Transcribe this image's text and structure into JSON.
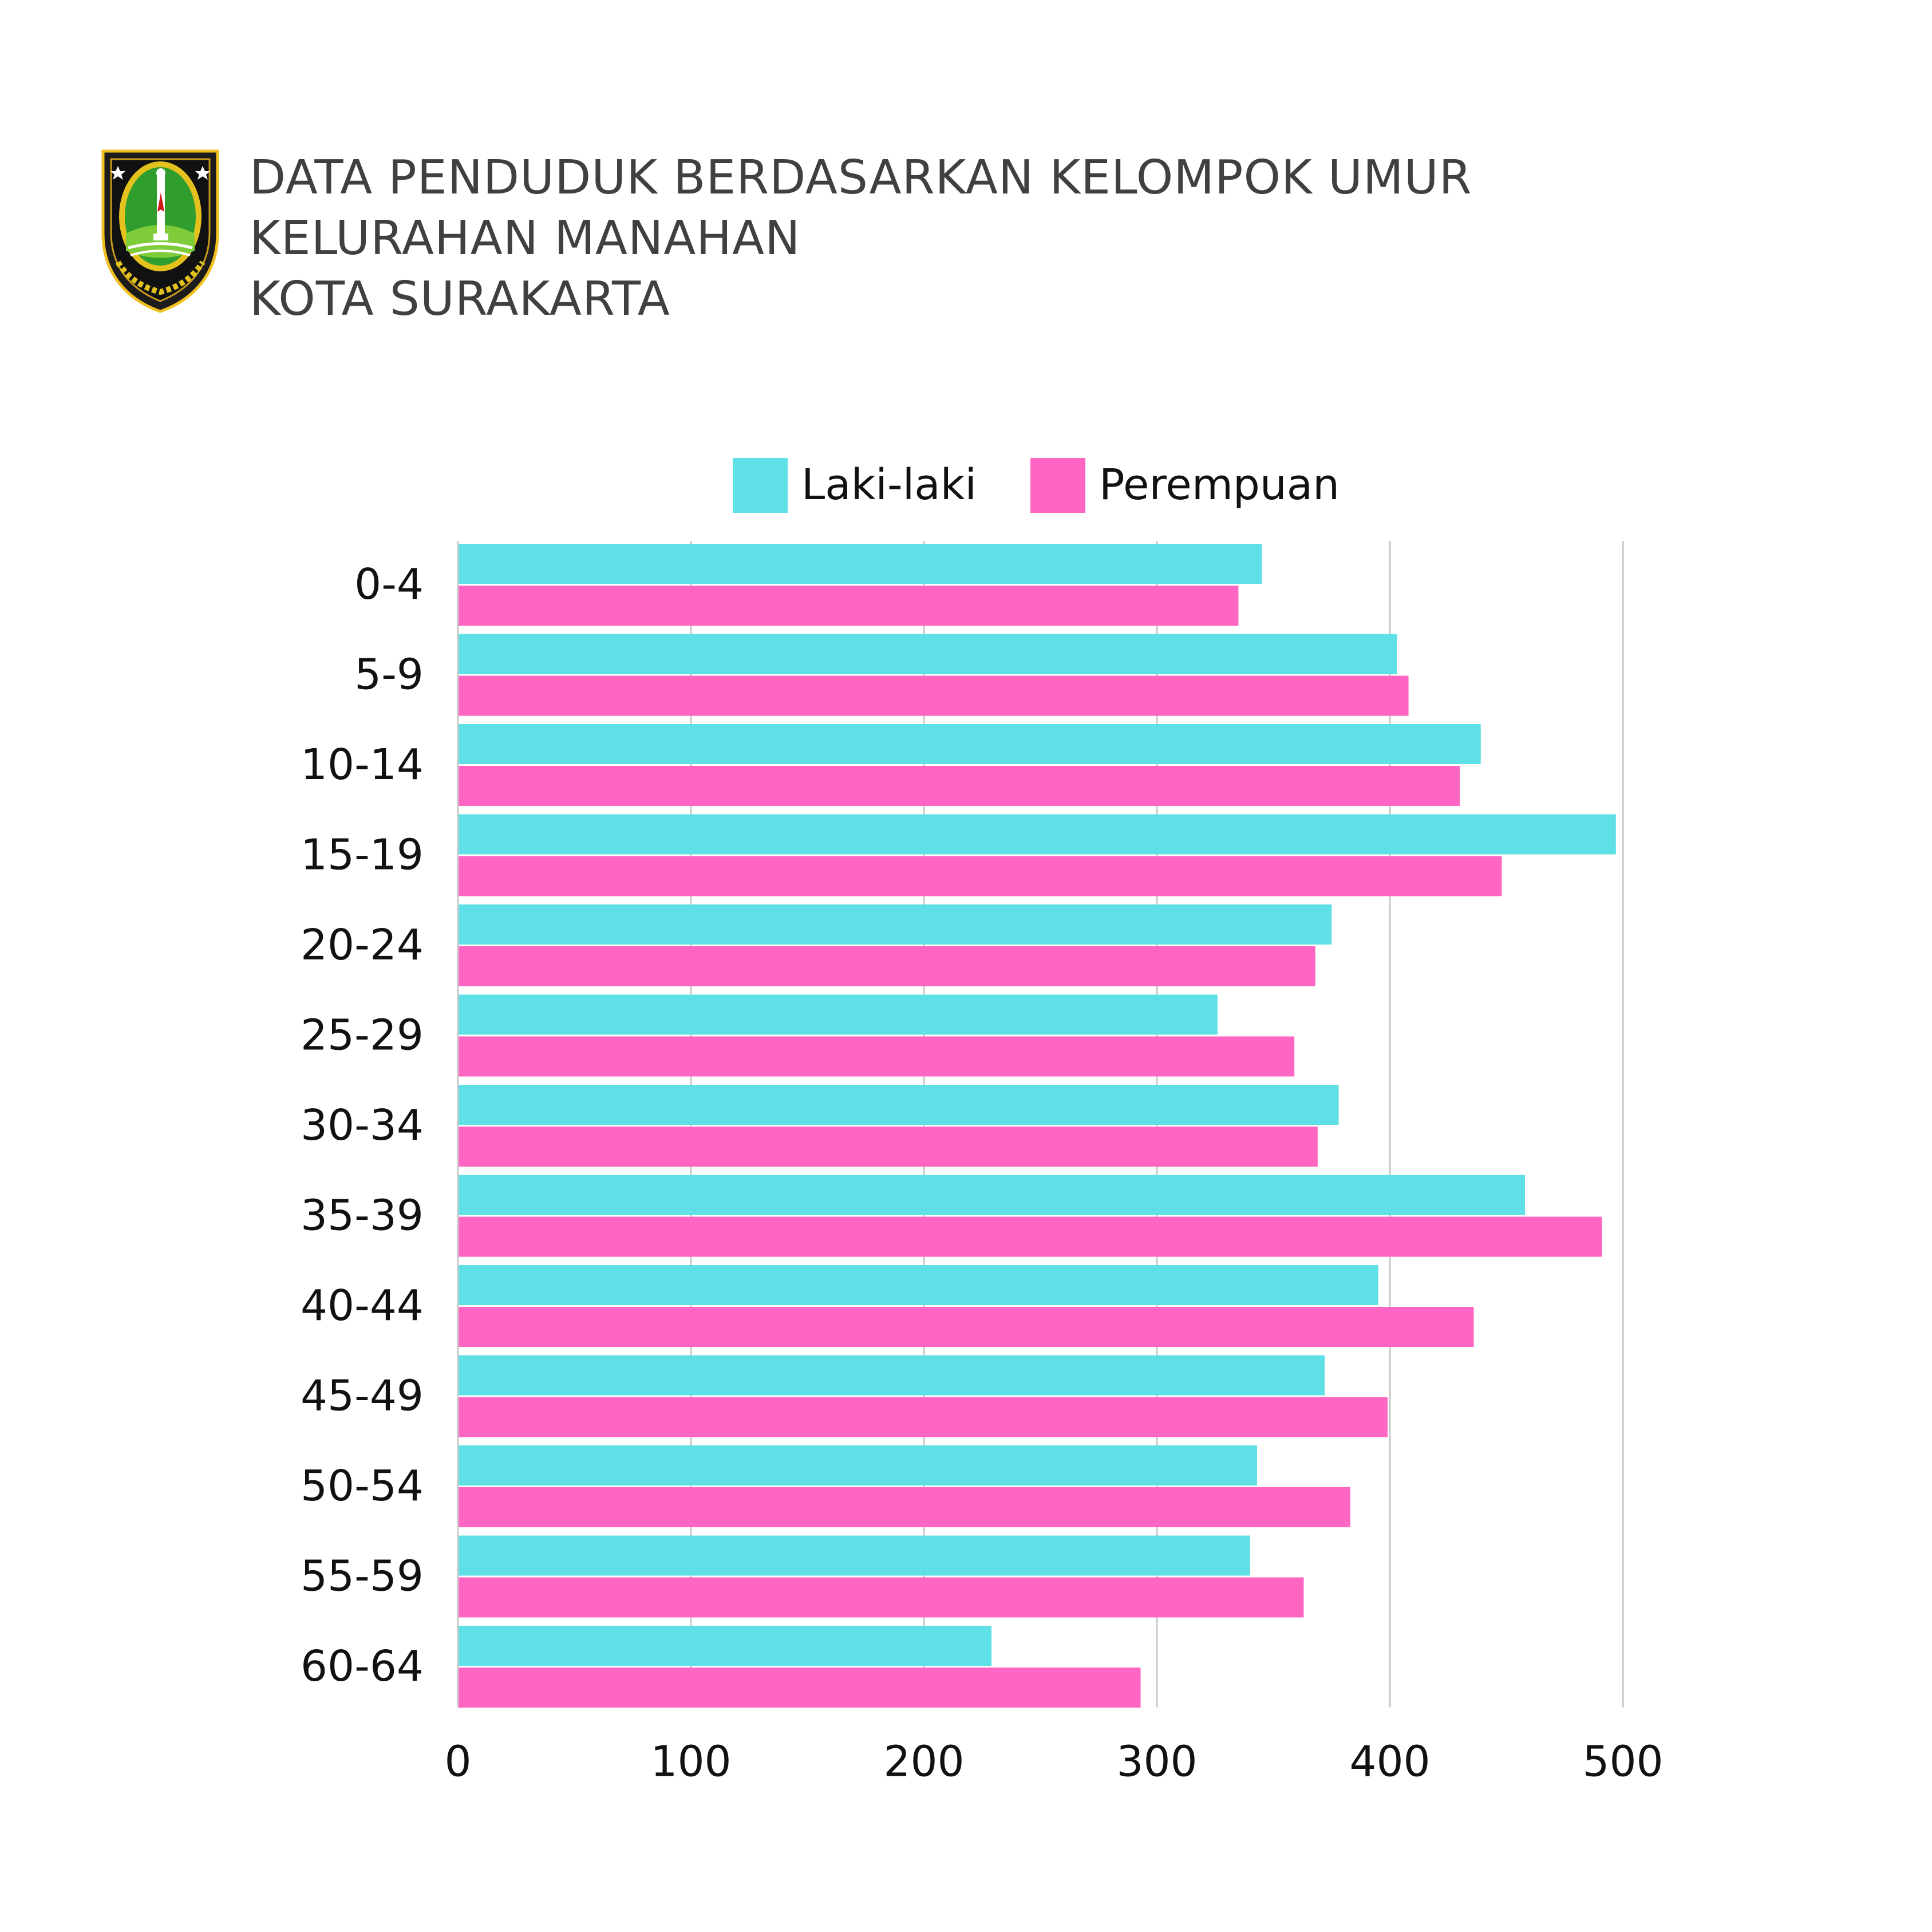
{
  "header": {
    "title_lines": [
      "DATA PENDUDUK BERDASARKAN KELOMPOK UMUR",
      "KELURAHAN MANAHAN",
      "KOTA SURAKARTA"
    ],
    "logo": "kota-surakarta-coat-of-arms"
  },
  "colors": {
    "laki": "#5ee0e6",
    "perempuan": "#ff66c4",
    "grid": "#c8c8c8",
    "text": "#111111",
    "title": "#404040"
  },
  "chart_data": {
    "type": "bar",
    "orientation": "horizontal",
    "categories": [
      "0-4",
      "5-9",
      "10-14",
      "15-19",
      "20-24",
      "25-29",
      "30-34",
      "35-39",
      "40-44",
      "45-49",
      "50-54",
      "55-59",
      "60-64"
    ],
    "series": [
      {
        "name": "Laki-laki",
        "values": [
          345,
          403,
          439,
          497,
          375,
          326,
          378,
          458,
          395,
          372,
          343,
          340,
          229
        ]
      },
      {
        "name": "Perempuan",
        "values": [
          335,
          408,
          430,
          448,
          368,
          359,
          369,
          491,
          436,
          399,
          383,
          363,
          293
        ]
      }
    ],
    "x_ticks": [
      "0",
      "100",
      "200",
      "300",
      "400",
      "500"
    ],
    "xlim": [
      0,
      500
    ],
    "grid": true,
    "legend": "top-center"
  }
}
